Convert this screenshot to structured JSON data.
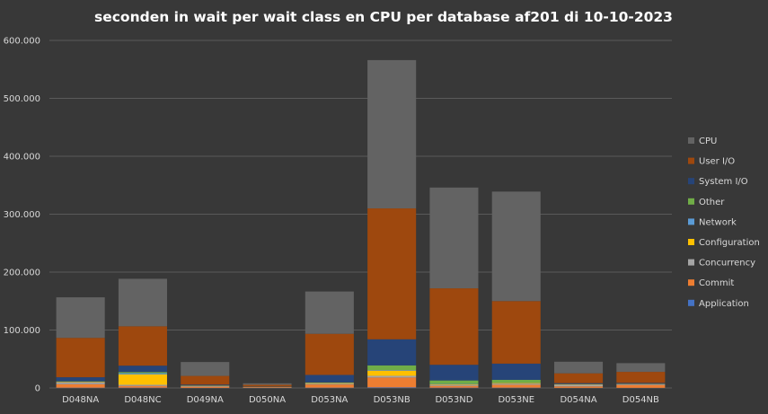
{
  "chart_data": {
    "type": "bar",
    "stacked": true,
    "title": "seconden in wait per wait class en CPU per database af201 di 10-10-2023",
    "xlabel": "",
    "ylabel": "",
    "ylim": [
      0,
      600000
    ],
    "yticks": [
      0,
      100000,
      200000,
      300000,
      400000,
      500000,
      600000
    ],
    "ytick_labels": [
      "0",
      "100.000",
      "200.000",
      "300.000",
      "400.000",
      "500.000",
      "600.000"
    ],
    "grid": true,
    "legend_position": "right",
    "categories": [
      "D048NA",
      "D048NC",
      "D049NA",
      "D050NA",
      "D053NA",
      "D053NB",
      "D053ND",
      "D053NE",
      "D054NA",
      "D054NB"
    ],
    "series": [
      {
        "name": "Application",
        "color": "#4472c4",
        "values": [
          500,
          500,
          200,
          100,
          500,
          1000,
          500,
          500,
          200,
          200
        ]
      },
      {
        "name": "Commit",
        "color": "#ed7d31",
        "values": [
          6000,
          3000,
          2000,
          1000,
          5500,
          17000,
          3000,
          5000,
          2500,
          5000
        ]
      },
      {
        "name": "Concurrency",
        "color": "#a5a5a5",
        "values": [
          3000,
          2000,
          1000,
          500,
          1500,
          3000,
          2000,
          2000,
          3000,
          1000
        ]
      },
      {
        "name": "Configuration",
        "color": "#ffc000",
        "values": [
          1000,
          18000,
          500,
          200,
          1000,
          9000,
          1000,
          1000,
          500,
          500
        ]
      },
      {
        "name": "Network",
        "color": "#5b9bd5",
        "values": [
          500,
          2000,
          300,
          100,
          500,
          1000,
          500,
          500,
          300,
          300
        ]
      },
      {
        "name": "Other",
        "color": "#70ad47",
        "values": [
          500,
          2000,
          300,
          100,
          500,
          8000,
          6000,
          5000,
          300,
          300
        ]
      },
      {
        "name": "System I/O",
        "color": "#264478",
        "values": [
          7000,
          11000,
          1500,
          500,
          13000,
          45000,
          27000,
          28000,
          1500,
          1500
        ]
      },
      {
        "name": "User I/O",
        "color": "#9e480e",
        "values": [
          68000,
          68000,
          15000,
          3000,
          71000,
          226000,
          132000,
          108000,
          17000,
          19000
        ]
      },
      {
        "name": "CPU",
        "color": "#636363",
        "values": [
          70000,
          82000,
          24000,
          2500,
          73000,
          256000,
          174000,
          189000,
          20000,
          15000
        ]
      }
    ]
  }
}
